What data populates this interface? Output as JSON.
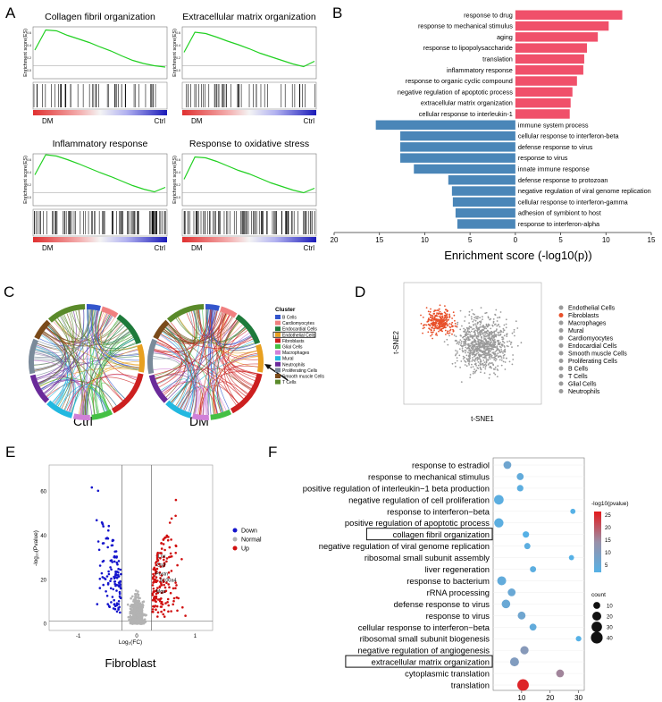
{
  "panels": {
    "a": "A",
    "b": "B",
    "c": "C",
    "d": "D",
    "e": "E",
    "f": "F"
  },
  "panel_a": {
    "ylabel": "Enrichment score(ES)",
    "left_label": "DM",
    "right_label": "Ctrl",
    "plots": [
      {
        "title": "Collagen fibril organization",
        "curve": [
          0.35,
          0.8,
          0.78,
          0.68,
          0.6,
          0.52,
          0.42,
          0.33,
          0.22,
          0.12,
          0.05,
          0.0,
          -0.03
        ]
      },
      {
        "title": "Extracellular matrix organization",
        "curve": [
          0.3,
          0.75,
          0.72,
          0.64,
          0.55,
          0.47,
          0.38,
          0.28,
          0.2,
          0.12,
          0.04,
          -0.02,
          0.1
        ]
      },
      {
        "title": "Inflammatory response",
        "curve": [
          0.4,
          0.85,
          0.82,
          0.74,
          0.65,
          0.55,
          0.45,
          0.36,
          0.26,
          0.16,
          0.08,
          0.02,
          0.12
        ]
      },
      {
        "title": "Response to oxidative stress",
        "curve": [
          0.3,
          0.8,
          0.78,
          0.7,
          0.6,
          0.5,
          0.42,
          0.32,
          0.22,
          0.14,
          0.06,
          0.0,
          0.1
        ]
      }
    ]
  },
  "chart_data": [
    {
      "type": "bar",
      "panel": "B",
      "xlabel": "Enrichment score (-log10(p))",
      "xlim": [
        -20,
        15
      ],
      "ticks": [
        "20",
        "15",
        "10",
        "5",
        "0",
        "5",
        "10",
        "15"
      ],
      "colors": {
        "up": "#f0506a",
        "down": "#4a86b8"
      },
      "categories": [
        "response to drug",
        "response to mechanical stimulus",
        "aging",
        "response to lipopolysaccharide",
        "translation",
        "inflammatory response",
        "response to organic cyclic compound",
        "negative regulation of apoptotic process",
        "extracellular matrix organization",
        "cellular response to interleukin-1",
        "immune system process",
        "cellular response to interferon-beta",
        "defense response to virus",
        "response to virus",
        "innate immune response",
        "defense response to protozoan",
        "negative regulation of viral genome replication",
        "cellular response to interferon-gamma",
        "adhesion of symbiont to host",
        "response to interferon-alpha"
      ],
      "values": [
        11.8,
        10.3,
        9.1,
        7.9,
        7.6,
        7.5,
        6.8,
        6.3,
        6.1,
        6.0,
        -15.4,
        -12.7,
        -12.7,
        -12.7,
        -11.2,
        -7.4,
        -7.0,
        -6.9,
        -6.6,
        -6.4
      ]
    },
    {
      "type": "scatter",
      "panel": "E",
      "title": "Fibroblast",
      "xlabel": "Log₂(FC)",
      "ylabel": "-log₁₀(Pvalue)",
      "xlim": [
        -1.5,
        1.3
      ],
      "ylim": [
        -3,
        72
      ],
      "xticks": [
        {
          "v": -1,
          "label": "-1"
        },
        {
          "v": 0,
          "label": "0"
        },
        {
          "v": 1,
          "label": "1"
        }
      ],
      "yticks": [
        {
          "v": 0,
          "label": "0"
        },
        {
          "v": 20,
          "label": "20"
        },
        {
          "v": 40,
          "label": "40"
        },
        {
          "v": 60,
          "label": "60"
        }
      ],
      "vlines": [
        -0.25,
        0.25
      ],
      "hline": 1.3,
      "legend": [
        {
          "name": "Down",
          "color": "#1515cc"
        },
        {
          "name": "Normal",
          "color": "#b3b3b3"
        },
        {
          "name": "Up",
          "color": "#d01010"
        }
      ],
      "labels": [
        {
          "text": "Lox",
          "x": 0.3,
          "y": 30
        },
        {
          "text": "Ctgf",
          "x": 0.28,
          "y": 26
        },
        {
          "text": "Postn",
          "x": 0.26,
          "y": 22
        },
        {
          "text": "S100a4",
          "x": 0.33,
          "y": 19
        },
        {
          "text": "Mgp",
          "x": 0.27,
          "y": 14
        }
      ]
    },
    {
      "type": "scatter",
      "panel": "F",
      "xlim": [
        0,
        32
      ],
      "xticks": [
        10,
        20,
        30
      ],
      "color_scale": {
        "title": "-log10(pvalue)",
        "min": 5,
        "max": 27,
        "ticks": [
          25,
          20,
          15,
          10,
          5
        ],
        "low": "#56b1e6",
        "high": "#e41a1c"
      },
      "size_legend": {
        "title": "count",
        "values": [
          10,
          20,
          30,
          40
        ]
      },
      "terms": [
        {
          "name": "response to estradiol",
          "x": 5,
          "p": 9,
          "count": 14,
          "boxed": false
        },
        {
          "name": "response to mechanical stimulus",
          "x": 9.5,
          "p": 7,
          "count": 10,
          "boxed": false
        },
        {
          "name": "positive regulation of interleukin−1 beta production",
          "x": 9.5,
          "p": 6,
          "count": 8,
          "boxed": false
        },
        {
          "name": "negative regulation of cell proliferation",
          "x": 2,
          "p": 6,
          "count": 24,
          "boxed": false
        },
        {
          "name": "response to interferon−beta",
          "x": 28,
          "p": 5,
          "count": 4,
          "boxed": false
        },
        {
          "name": "positive regulation of apoptotic process",
          "x": 2,
          "p": 6,
          "count": 22,
          "boxed": false
        },
        {
          "name": "collagen fibril organization",
          "x": 11.5,
          "p": 5,
          "count": 8,
          "boxed": true
        },
        {
          "name": "negative regulation of viral genome replication",
          "x": 12,
          "p": 6,
          "count": 7,
          "boxed": false
        },
        {
          "name": "ribosomal small subunit assembly",
          "x": 27.5,
          "p": 5,
          "count": 4,
          "boxed": false
        },
        {
          "name": "liver regeneration",
          "x": 14,
          "p": 6,
          "count": 7,
          "boxed": false
        },
        {
          "name": "response to bacterium",
          "x": 3,
          "p": 7,
          "count": 20,
          "boxed": false
        },
        {
          "name": "rRNA processing",
          "x": 6.5,
          "p": 8,
          "count": 14,
          "boxed": false
        },
        {
          "name": "defense response to virus",
          "x": 4.5,
          "p": 8,
          "count": 18,
          "boxed": false
        },
        {
          "name": "response to virus",
          "x": 10,
          "p": 9,
          "count": 14,
          "boxed": false
        },
        {
          "name": "cellular response to interferon−beta",
          "x": 14,
          "p": 7,
          "count": 10,
          "boxed": false
        },
        {
          "name": "ribosomal small subunit biogenesis",
          "x": 30,
          "p": 5,
          "count": 5,
          "boxed": false
        },
        {
          "name": "negative regulation of angiogenesis",
          "x": 11,
          "p": 13,
          "count": 16,
          "boxed": false
        },
        {
          "name": "extracellular matrix organization",
          "x": 7.5,
          "p": 12,
          "count": 20,
          "boxed": true
        },
        {
          "name": "cytoplasmic translation",
          "x": 23.5,
          "p": 17,
          "count": 14,
          "boxed": false
        },
        {
          "name": "translation",
          "x": 10.5,
          "p": 26,
          "count": 38,
          "boxed": false
        }
      ]
    }
  ],
  "panel_c": {
    "ctrl_label": "Ctrl",
    "dm_label": "DM",
    "legend_title": "Cluster",
    "highlight_index": 3,
    "clusters": [
      {
        "name": "B Cells",
        "color": "#3355cc"
      },
      {
        "name": "Cardiomyocytes",
        "color": "#f08080"
      },
      {
        "name": "Endocardial Cells",
        "color": "#1e7a3a"
      },
      {
        "name": "Endothelial Cells",
        "color": "#e8a020"
      },
      {
        "name": "Fibroblasts",
        "color": "#cc1f1f"
      },
      {
        "name": "Glial Cells",
        "color": "#44c044"
      },
      {
        "name": "Macrophages",
        "color": "#d080d8"
      },
      {
        "name": "Mural",
        "color": "#22b8e0"
      },
      {
        "name": "Neutrophils",
        "color": "#6a2a9a"
      },
      {
        "name": "Proliferating Cells",
        "color": "#7a8a9a"
      },
      {
        "name": "Smooth muscle Cells",
        "color": "#7a4a1a"
      },
      {
        "name": "T Cells",
        "color": "#5a8a2a"
      }
    ]
  },
  "panel_d": {
    "xlabel": "t-SNE1",
    "ylabel": "t-SNE2",
    "highlight_color": "#e8502a",
    "other_color": "#9a9a9a",
    "legend": [
      "Endothelial Cells",
      "Fibroblasts",
      "Macrophages",
      "Mural",
      "Cardiomyocytes",
      "Endocardial Cells",
      "Smooth muscle Cells",
      "Proliferating Cells",
      "B Cells",
      "T Cells",
      "Glial Cells",
      "Neutrophils"
    ],
    "highlight_name": "Fibroblasts"
  }
}
